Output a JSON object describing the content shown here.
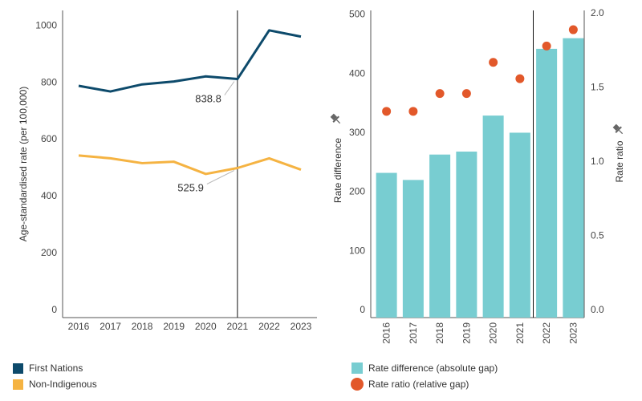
{
  "chart_data": [
    {
      "type": "line",
      "ylabel": "Age-standardised rate (per 100,000)",
      "x": [
        "2016",
        "2017",
        "2018",
        "2019",
        "2020",
        "2021",
        "2022",
        "2023"
      ],
      "ylim": [
        0,
        1080
      ],
      "yticks": [
        "0",
        "200",
        "400",
        "600",
        "800",
        "1000"
      ],
      "series": [
        {
          "name": "First Nations",
          "color": "#0d4a6b",
          "values": [
            815,
            795,
            820,
            830,
            848,
            838.8,
            1010,
            988
          ]
        },
        {
          "name": "Non-Indigenous",
          "color": "#f5b342",
          "values": [
            570,
            560,
            543,
            548,
            505,
            525.9,
            560,
            520
          ]
        }
      ],
      "annotations": [
        {
          "text": "838.8",
          "x": "2021",
          "series": "First Nations"
        },
        {
          "text": "525.9",
          "x": "2021",
          "series": "Non-Indigenous"
        }
      ],
      "reference_line_x": "2021"
    },
    {
      "type": "bar",
      "ylabel": "Rate difference",
      "y2label": "Rate ratio",
      "categories": [
        "2016",
        "2017",
        "2018",
        "2019",
        "2020",
        "2021",
        "2022",
        "2023"
      ],
      "ylim": [
        0,
        520
      ],
      "y2lim": [
        0,
        2.07
      ],
      "yticks": [
        "0",
        "100",
        "200",
        "300",
        "400",
        "500"
      ],
      "y2ticks": [
        "0.0",
        "0.5",
        "1.0",
        "1.5",
        "2.0"
      ],
      "series": [
        {
          "name": "Rate difference (absolute gap)",
          "kind": "bar",
          "color": "#78cdd1",
          "values": [
            245,
            233,
            276,
            281,
            342,
            313,
            455,
            473
          ]
        },
        {
          "name": "Rate ratio (relative gap)",
          "kind": "dot",
          "color": "#e2582a",
          "values": [
            1.39,
            1.39,
            1.51,
            1.51,
            1.72,
            1.61,
            1.83,
            1.94
          ]
        }
      ],
      "reference_line_between": [
        "2021",
        "2022"
      ]
    }
  ],
  "legend_left": [
    {
      "label": "First Nations",
      "color": "#0d4a6b"
    },
    {
      "label": "Non-Indigenous",
      "color": "#f5b342"
    }
  ],
  "legend_right": [
    {
      "label": "Rate difference (absolute gap)",
      "color": "#78cdd1"
    },
    {
      "label": "Rate ratio (relative gap)",
      "color": "#e2582a"
    }
  ]
}
